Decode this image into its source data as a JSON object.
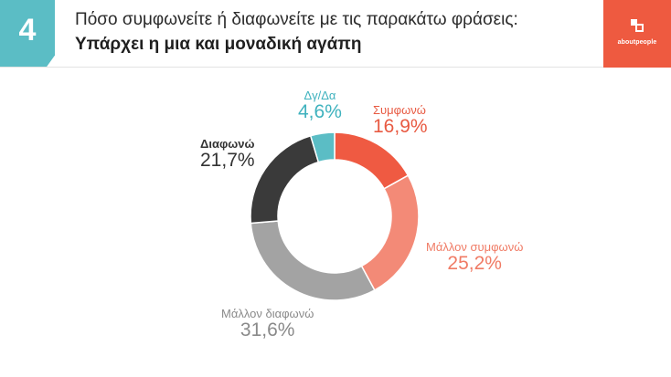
{
  "header": {
    "number": "4",
    "question": "Πόσο συμφωνείτε ή διαφωνείτε με τις παρακάτω φράσεις:",
    "statement": "Υπάρχει η μια και μοναδική αγάπη",
    "logo_text": "aboutpeople"
  },
  "chart_data": {
    "type": "pie",
    "donut": true,
    "categories": [
      "Συμφωνώ",
      "Μάλλον συμφωνώ",
      "Μάλλον διαφωνώ",
      "Διαφωνώ",
      "Δγ/Δα"
    ],
    "values": [
      16.9,
      25.2,
      31.6,
      21.7,
      4.6
    ],
    "value_labels": [
      "16,9%",
      "25,2%",
      "31,6%",
      "21,7%",
      "4,6%"
    ],
    "colors": [
      "#ef5a42",
      "#f38a77",
      "#a3a3a3",
      "#3a3a3a",
      "#5bbdc5"
    ],
    "label_colors": [
      "#e85a42",
      "#f07b65",
      "#8a8a8a",
      "#333333",
      "#3fb2be"
    ]
  }
}
